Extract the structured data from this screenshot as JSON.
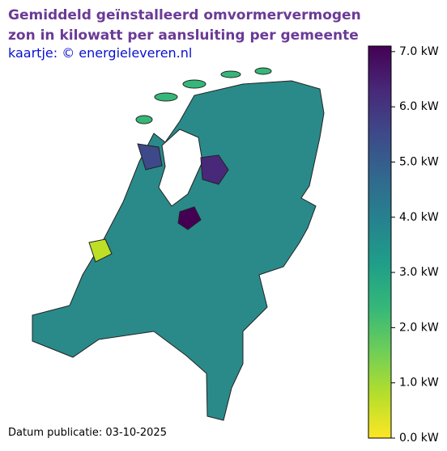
{
  "header": {
    "title_lines": [
      "Gemiddeld geïnstalleerd omvormervermogen",
      "zon in kilowatt per aansluiting per gemeente"
    ],
    "subtitle": "kaartje: © energieleveren.nl"
  },
  "footer": {
    "date": "Datum publicatie: 03-10-2025"
  },
  "colorbar": {
    "lim": [
      0,
      7.1
    ],
    "colormap": [
      "#fde725",
      "#b5de2b",
      "#6ece58",
      "#35b779",
      "#1f9e89",
      "#26828e",
      "#31688e",
      "#3e4989",
      "#482878",
      "#440154"
    ],
    "ticks": [
      {
        "value": 0,
        "label": "0.0 kW"
      },
      {
        "value": 1,
        "label": "1.0 kW"
      },
      {
        "value": 2,
        "label": "2.0 kW"
      },
      {
        "value": 3,
        "label": "3.0 kW"
      },
      {
        "value": 4,
        "label": "4.0 kW"
      },
      {
        "value": 5,
        "label": "5.0 kW"
      },
      {
        "value": 6,
        "label": "6.0 kW"
      },
      {
        "value": 7,
        "label": "7.0 kW"
      }
    ]
  }
}
